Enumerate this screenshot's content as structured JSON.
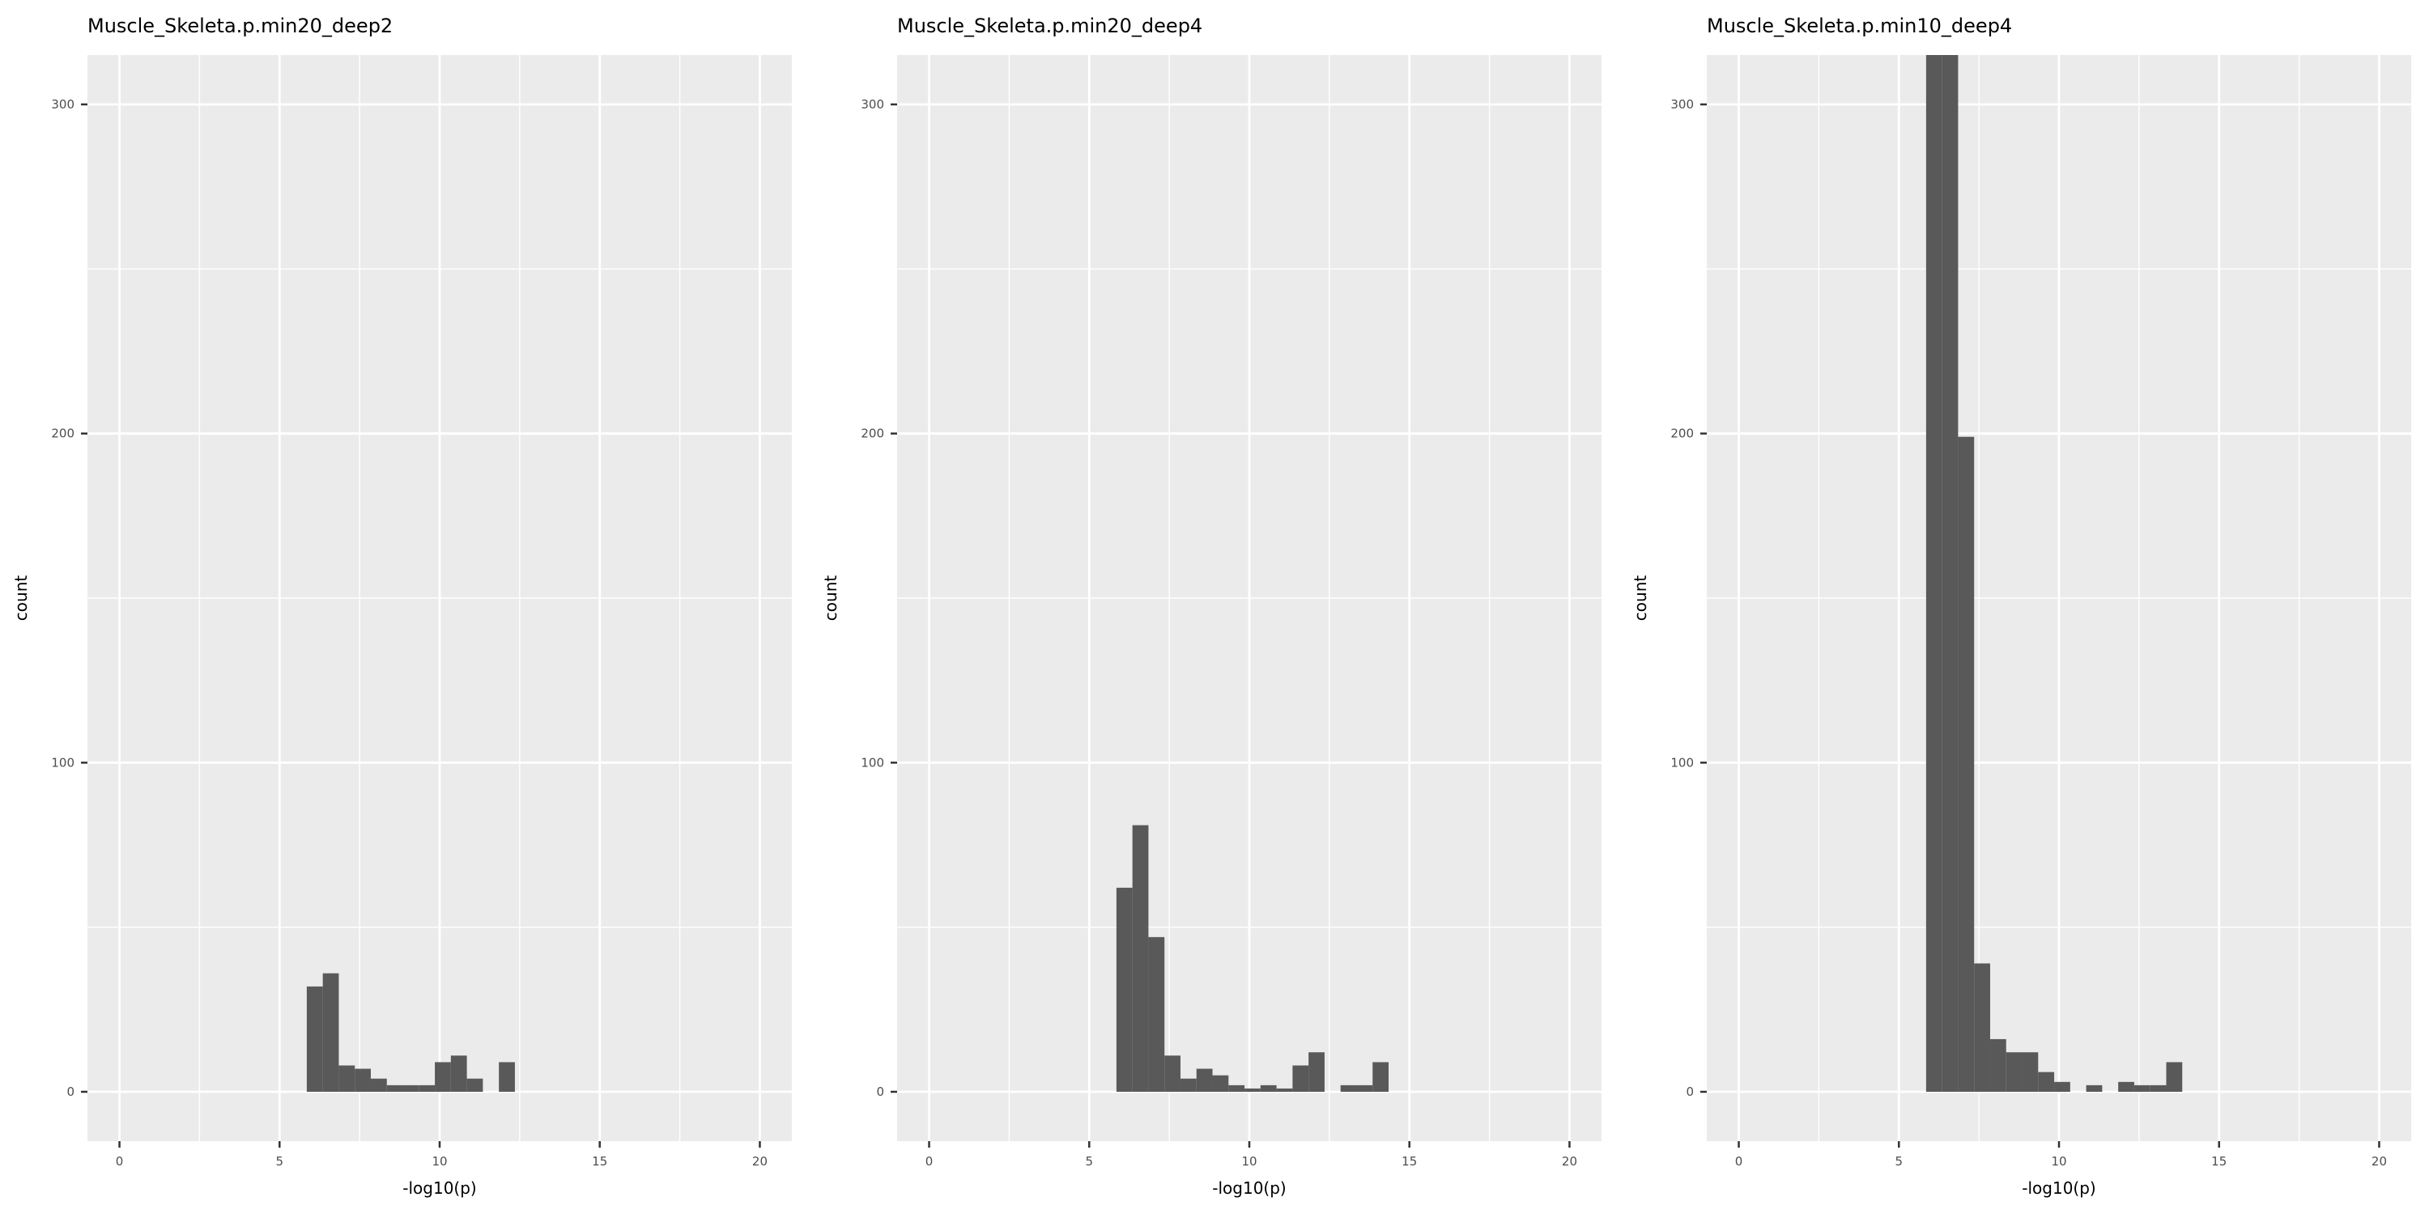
{
  "chart_data": [
    {
      "type": "histogram",
      "title": "Muscle_Skeleta.p.min20_deep2",
      "xlabel": "-log10(p)",
      "ylabel": "count",
      "xlim": [
        -1,
        21
      ],
      "ylim": [
        -15,
        315
      ],
      "xticks": [
        0,
        5,
        10,
        15,
        20
      ],
      "yticks": [
        0,
        100,
        200,
        300
      ],
      "grid": true,
      "bin_width": 0.5,
      "bins": [
        {
          "x0": 5.85,
          "x1": 6.35,
          "count": 32
        },
        {
          "x0": 6.35,
          "x1": 6.85,
          "count": 36
        },
        {
          "x0": 6.85,
          "x1": 7.35,
          "count": 8
        },
        {
          "x0": 7.35,
          "x1": 7.85,
          "count": 7
        },
        {
          "x0": 7.85,
          "x1": 8.35,
          "count": 4
        },
        {
          "x0": 8.35,
          "x1": 8.85,
          "count": 2
        },
        {
          "x0": 8.85,
          "x1": 9.35,
          "count": 2
        },
        {
          "x0": 9.35,
          "x1": 9.85,
          "count": 2
        },
        {
          "x0": 9.85,
          "x1": 10.35,
          "count": 9
        },
        {
          "x0": 10.35,
          "x1": 10.85,
          "count": 11
        },
        {
          "x0": 10.85,
          "x1": 11.35,
          "count": 4
        },
        {
          "x0": 11.85,
          "x1": 12.35,
          "count": 9
        }
      ]
    },
    {
      "type": "histogram",
      "title": "Muscle_Skeleta.p.min20_deep4",
      "xlabel": "-log10(p)",
      "ylabel": "count",
      "xlim": [
        -1,
        21
      ],
      "ylim": [
        -15,
        315
      ],
      "xticks": [
        0,
        5,
        10,
        15,
        20
      ],
      "yticks": [
        0,
        100,
        200,
        300
      ],
      "grid": true,
      "bin_width": 0.5,
      "bins": [
        {
          "x0": 5.85,
          "x1": 6.35,
          "count": 62
        },
        {
          "x0": 6.35,
          "x1": 6.85,
          "count": 81
        },
        {
          "x0": 6.85,
          "x1": 7.35,
          "count": 47
        },
        {
          "x0": 7.35,
          "x1": 7.85,
          "count": 11
        },
        {
          "x0": 7.85,
          "x1": 8.35,
          "count": 4
        },
        {
          "x0": 8.35,
          "x1": 8.85,
          "count": 7
        },
        {
          "x0": 8.85,
          "x1": 9.35,
          "count": 5
        },
        {
          "x0": 9.35,
          "x1": 9.85,
          "count": 2
        },
        {
          "x0": 9.85,
          "x1": 10.35,
          "count": 1
        },
        {
          "x0": 10.35,
          "x1": 10.85,
          "count": 2
        },
        {
          "x0": 10.85,
          "x1": 11.35,
          "count": 1
        },
        {
          "x0": 11.35,
          "x1": 11.85,
          "count": 8
        },
        {
          "x0": 11.85,
          "x1": 12.35,
          "count": 12
        },
        {
          "x0": 12.85,
          "x1": 13.35,
          "count": 2
        },
        {
          "x0": 13.35,
          "x1": 13.85,
          "count": 2
        },
        {
          "x0": 13.85,
          "x1": 14.35,
          "count": 9
        }
      ]
    },
    {
      "type": "histogram",
      "title": "Muscle_Skeleta.p.min10_deep4",
      "xlabel": "-log10(p)",
      "ylabel": "count",
      "xlim": [
        -1,
        21
      ],
      "ylim": [
        -15,
        315
      ],
      "xticks": [
        0,
        5,
        10,
        15,
        20
      ],
      "yticks": [
        0,
        100,
        200,
        300
      ],
      "grid": true,
      "bin_width": 0.5,
      "bins": [
        {
          "x0": 5.85,
          "x1": 6.35,
          "count": 315
        },
        {
          "x0": 6.35,
          "x1": 6.85,
          "count": 315
        },
        {
          "x0": 6.85,
          "x1": 7.35,
          "count": 199
        },
        {
          "x0": 7.35,
          "x1": 7.85,
          "count": 39
        },
        {
          "x0": 7.85,
          "x1": 8.35,
          "count": 16
        },
        {
          "x0": 8.35,
          "x1": 8.85,
          "count": 12
        },
        {
          "x0": 8.85,
          "x1": 9.35,
          "count": 12
        },
        {
          "x0": 9.35,
          "x1": 9.85,
          "count": 6
        },
        {
          "x0": 9.85,
          "x1": 10.35,
          "count": 3
        },
        {
          "x0": 10.85,
          "x1": 11.35,
          "count": 2
        },
        {
          "x0": 11.85,
          "x1": 12.35,
          "count": 3
        },
        {
          "x0": 12.35,
          "x1": 12.85,
          "count": 2
        },
        {
          "x0": 12.85,
          "x1": 13.35,
          "count": 2
        },
        {
          "x0": 13.35,
          "x1": 13.85,
          "count": 9
        }
      ]
    }
  ],
  "colors": {
    "panel_background": "#ebebeb",
    "grid_line": "#ffffff",
    "bar_fill": "#595959",
    "tick_color": "#333333",
    "text_color": "#000000",
    "tick_label_color": "#4d4d4d"
  }
}
